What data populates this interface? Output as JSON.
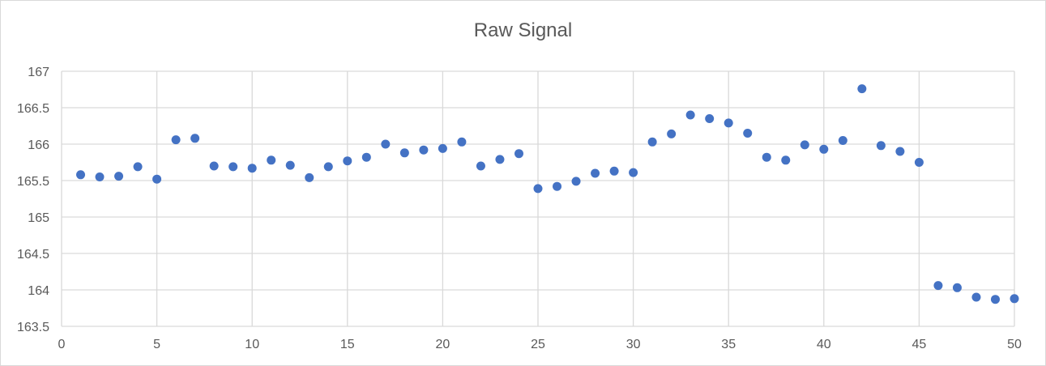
{
  "chart_data": {
    "type": "scatter",
    "title": "Raw Signal",
    "xlabel": "",
    "ylabel": "",
    "xlim": [
      0,
      50
    ],
    "ylim": [
      163.5,
      167
    ],
    "x_ticks": [
      0,
      5,
      10,
      15,
      20,
      25,
      30,
      35,
      40,
      45,
      50
    ],
    "y_ticks": [
      163.5,
      164,
      164.5,
      165,
      165.5,
      166,
      166.5,
      167
    ],
    "grid": true,
    "legend": "none",
    "marker_color": "#4472C4",
    "series": [
      {
        "x": [
          1,
          2,
          3,
          4,
          5,
          6,
          7,
          8,
          9,
          10,
          11,
          12,
          13,
          14,
          15,
          16,
          17,
          18,
          19,
          20,
          21,
          22,
          23,
          24,
          25,
          26,
          27,
          28,
          29,
          30,
          31,
          32,
          33,
          34,
          35,
          36,
          37,
          38,
          39,
          40,
          41,
          42,
          43,
          44,
          45,
          46,
          47,
          48,
          49,
          50
        ],
        "y": [
          165.58,
          165.55,
          165.56,
          165.69,
          165.52,
          166.06,
          166.08,
          165.7,
          165.69,
          165.67,
          165.78,
          165.71,
          165.54,
          165.69,
          165.77,
          165.82,
          166.0,
          165.88,
          165.92,
          165.94,
          166.03,
          165.7,
          165.79,
          165.87,
          165.39,
          165.42,
          165.49,
          165.6,
          165.63,
          165.61,
          166.03,
          166.14,
          166.4,
          166.35,
          166.29,
          166.15,
          165.82,
          165.78,
          165.99,
          165.93,
          166.05,
          166.76,
          165.98,
          165.9,
          165.75,
          164.06,
          164.03,
          163.9,
          163.87,
          163.88
        ]
      }
    ]
  }
}
